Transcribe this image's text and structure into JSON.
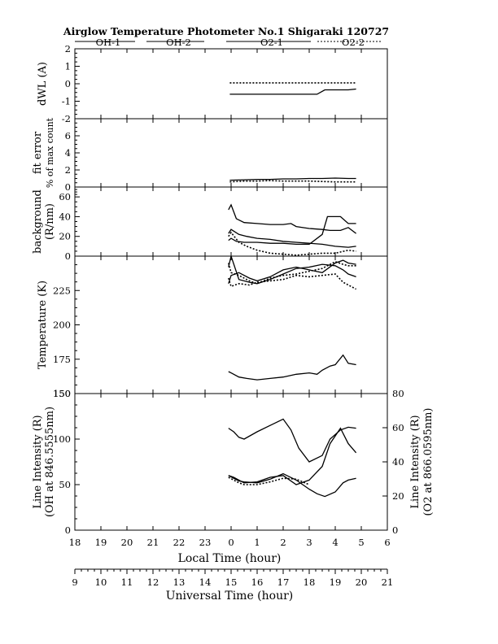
{
  "title": "Airglow Temperature Photometer No.1   Shigaraki   120727",
  "legend": [
    {
      "label": "OH-1",
      "dash": "solid"
    },
    {
      "label": "OH-2",
      "dash": "solid"
    },
    {
      "label": "O2-1",
      "dash": "solid"
    },
    {
      "label": "O2-2",
      "dash": "dotted"
    }
  ],
  "local_time_axis": {
    "title": "Local Time (hour)",
    "ticks": [
      "18",
      "19",
      "20",
      "21",
      "22",
      "23",
      "0",
      "1",
      "2",
      "3",
      "4",
      "5",
      "6"
    ]
  },
  "universal_time_axis": {
    "title": "Universal Time (hour)",
    "ticks": [
      "9",
      "10",
      "11",
      "12",
      "13",
      "14",
      "15",
      "16",
      "17",
      "18",
      "19",
      "20",
      "21"
    ]
  },
  "chart_data": [
    {
      "type": "line",
      "panel": "dwl",
      "ylabel": "dWL (A)",
      "ylim": [
        -2,
        2
      ],
      "yticks": [
        "-2",
        "-1",
        "0",
        "1",
        "2"
      ],
      "series": [
        {
          "dash": "solid",
          "x": [
            23.95,
            24.5,
            25,
            25.5,
            26,
            26.5,
            27,
            27.3,
            27.6,
            28,
            28.5,
            28.8
          ],
          "y": [
            -0.6,
            -0.6,
            -0.6,
            -0.6,
            -0.6,
            -0.6,
            -0.6,
            -0.6,
            -0.35,
            -0.35,
            -0.35,
            -0.3
          ]
        },
        {
          "dash": "dotted",
          "x": [
            23.95,
            24.5,
            25,
            25.5,
            26,
            26.5,
            27,
            27.5,
            28,
            28.5,
            28.8
          ],
          "y": [
            0.05,
            0.05,
            0.05,
            0.05,
            0.05,
            0.05,
            0.05,
            0.05,
            0.05,
            0.05,
            0.05
          ]
        }
      ]
    },
    {
      "type": "line",
      "panel": "fit_error",
      "ylabel": "fit error",
      "ylabel2": "% of max count",
      "ylim": [
        0,
        8
      ],
      "yticks": [
        "0",
        "2",
        "4",
        "6"
      ],
      "series": [
        {
          "dash": "solid",
          "x": [
            23.95,
            24.5,
            25,
            25.5,
            26,
            26.5,
            27,
            27.5,
            28,
            28.5,
            28.8
          ],
          "y": [
            0.8,
            0.85,
            0.9,
            0.9,
            0.95,
            0.95,
            1.0,
            1.0,
            1.05,
            1.0,
            1.0
          ]
        },
        {
          "dash": "dotted",
          "x": [
            23.95,
            24.5,
            25,
            25.5,
            26,
            26.5,
            27,
            27.5,
            28,
            28.5,
            28.8
          ],
          "y": [
            0.6,
            0.7,
            0.7,
            0.75,
            0.7,
            0.7,
            0.7,
            0.65,
            0.6,
            0.6,
            0.6
          ]
        }
      ]
    },
    {
      "type": "line",
      "panel": "background",
      "ylabel": "background",
      "ylabel2": "(R/nm)",
      "ylim": [
        0,
        70
      ],
      "yticks": [
        "0",
        "20",
        "40",
        "60"
      ],
      "series": [
        {
          "dash": "solid",
          "x": [
            23.9,
            24.0,
            24.2,
            24.5,
            25,
            25.5,
            26,
            26.3,
            26.5,
            27,
            27.5,
            27.8,
            28.2,
            28.5,
            28.8
          ],
          "y": [
            47,
            52,
            38,
            34,
            33,
            32,
            32,
            33,
            30,
            28,
            27,
            26,
            26,
            29,
            23
          ]
        },
        {
          "dash": "solid",
          "x": [
            23.9,
            24.0,
            24.2,
            24.5,
            25,
            25.5,
            26,
            26.5,
            27,
            27.5,
            27.7,
            28.2,
            28.5,
            28.8
          ],
          "y": [
            16,
            18,
            15,
            14,
            14,
            13,
            13,
            12,
            12,
            22,
            40,
            40,
            33,
            33
          ]
        },
        {
          "dash": "solid",
          "x": [
            23.9,
            24.0,
            24.3,
            24.6,
            25,
            25.5,
            26,
            26.5,
            27,
            27.5,
            28,
            28.5,
            28.8
          ],
          "y": [
            23,
            27,
            22,
            20,
            18,
            17,
            15,
            14,
            13,
            12,
            10,
            9,
            10
          ]
        },
        {
          "dash": "dotted",
          "x": [
            23.9,
            24.0,
            24.3,
            24.6,
            25,
            25.5,
            26,
            26.5,
            27,
            27.5,
            28,
            28.5,
            28.8
          ],
          "y": [
            20,
            24,
            14,
            10,
            6,
            3,
            2,
            1,
            2,
            3,
            3,
            6,
            5
          ]
        }
      ]
    },
    {
      "type": "line",
      "panel": "temperature",
      "ylabel": "Temperature (K)",
      "ylim": [
        150,
        250
      ],
      "yticks": [
        "150",
        "175",
        "200",
        "225"
      ],
      "series": [
        {
          "dash": "solid",
          "x": [
            23.9,
            24.0,
            24.3,
            24.7,
            25,
            25.5,
            26,
            26.5,
            27,
            27.5,
            28,
            28.3,
            28.5,
            28.8
          ],
          "y": [
            242,
            250,
            233,
            231,
            230,
            233,
            237,
            241,
            242,
            244,
            243,
            240,
            237,
            235
          ]
        },
        {
          "dash": "solid",
          "x": [
            23.9,
            24.0,
            24.3,
            24.7,
            25,
            25.5,
            26,
            26.5,
            27,
            27.5,
            28,
            28.3,
            28.5,
            28.8
          ],
          "y": [
            230,
            236,
            238,
            234,
            232,
            235,
            240,
            242,
            240,
            238,
            245,
            247,
            245,
            244
          ]
        },
        {
          "dash": "dotted",
          "x": [
            23.9,
            24.0,
            24.3,
            24.7,
            25,
            25.5,
            26,
            26.5,
            27,
            27.5,
            28,
            28.3,
            28.5,
            28.8
          ],
          "y": [
            245,
            238,
            236,
            232,
            230,
            234,
            236,
            237,
            239,
            241,
            246,
            244,
            243,
            243
          ]
        },
        {
          "dash": "dotted",
          "x": [
            23.9,
            24.0,
            24.3,
            24.7,
            25,
            25.5,
            26,
            26.5,
            27,
            27.5,
            28,
            28.3,
            28.5,
            28.8
          ],
          "y": [
            234,
            228,
            230,
            229,
            231,
            232,
            233,
            236,
            235,
            236,
            237,
            231,
            229,
            226
          ]
        },
        {
          "dash": "solid",
          "x": [
            23.9,
            24.0,
            24.3,
            24.6,
            25,
            25.5,
            26,
            26.5,
            27,
            27.3,
            27.5,
            27.8,
            28.0,
            28.3,
            28.5,
            28.8
          ],
          "y": [
            166,
            165,
            162,
            161,
            160,
            161,
            162,
            164,
            165,
            164,
            167,
            170,
            171,
            178,
            172,
            171
          ]
        }
      ]
    },
    {
      "type": "line",
      "panel": "intensity",
      "ylabel": "Line Intensity (R)",
      "ylabel2": "(OH at 846.5555nm)",
      "ylim": [
        0,
        150
      ],
      "yticks": [
        "0",
        "50",
        "100",
        "150"
      ],
      "y2label": "Line Intensity (R)",
      "y2label2": "(O2 at 866.0595nm)",
      "y2lim": [
        0,
        80
      ],
      "y2ticks": [
        "0",
        "20",
        "40",
        "60",
        "80"
      ],
      "series": [
        {
          "dash": "solid",
          "axis": "left",
          "x": [
            23.9,
            24.1,
            24.3,
            24.5,
            25,
            25.5,
            26,
            26.3,
            26.6,
            27,
            27.5,
            27.8,
            28.2,
            28.5,
            28.8
          ],
          "y": [
            112,
            108,
            102,
            100,
            108,
            115,
            122,
            110,
            90,
            75,
            82,
            100,
            110,
            113,
            112
          ]
        },
        {
          "dash": "solid",
          "axis": "left",
          "x": [
            23.9,
            24.1,
            24.3,
            24.5,
            25,
            25.5,
            26,
            26.5,
            27,
            27.5,
            27.8,
            28.2,
            28.5,
            28.8
          ],
          "y": [
            60,
            58,
            55,
            52,
            53,
            58,
            60,
            50,
            55,
            70,
            95,
            112,
            95,
            85
          ]
        },
        {
          "dash": "solid",
          "axis": "left",
          "x": [
            23.9,
            24.1,
            24.3,
            24.5,
            25,
            25.5,
            26,
            26.5,
            27,
            27.3,
            27.6,
            28,
            28.3,
            28.5,
            28.8
          ],
          "y": [
            60,
            57,
            54,
            53,
            52,
            56,
            62,
            55,
            45,
            40,
            37,
            42,
            52,
            55,
            57
          ]
        },
        {
          "dash": "dotted",
          "axis": "left",
          "x": [
            23.9,
            24.1,
            24.3,
            24.5,
            25,
            25.5,
            26,
            26.5,
            27
          ],
          "y": [
            58,
            55,
            52,
            50,
            50,
            53,
            57,
            56,
            50
          ]
        }
      ]
    }
  ]
}
